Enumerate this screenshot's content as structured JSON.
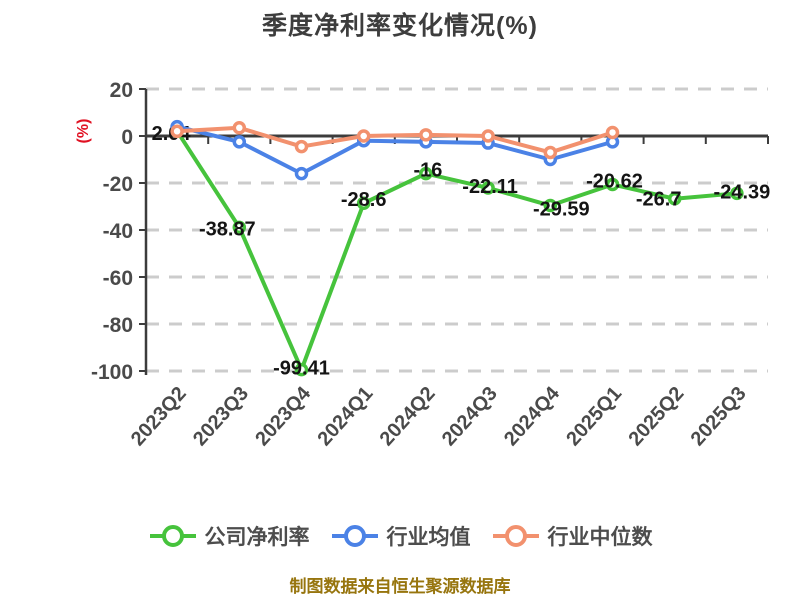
{
  "footer": "制图数据来自恒生聚源数据库",
  "chart_data": {
    "type": "line",
    "title": "季度净利率变化情况(%)",
    "y_axis_name": "(%)",
    "categories": [
      "2023Q2",
      "2023Q3",
      "2023Q4",
      "2024Q1",
      "2024Q2",
      "2024Q3",
      "2024Q4",
      "2025Q1",
      "2025Q2",
      "2025Q3"
    ],
    "y_ticks": [
      20,
      0,
      -20,
      -40,
      -60,
      -80,
      -100
    ],
    "ylim": [
      -100,
      20
    ],
    "grid": "horizontal-dashed",
    "legend_position": "bottom",
    "series": [
      {
        "key": "company-net-margin",
        "name": "公司净利率",
        "color": "#46c33c",
        "values": [
          2.04,
          -38.87,
          -99.41,
          -28.6,
          -16,
          -22.11,
          -29.59,
          -20.62,
          -26.7,
          -24.39
        ],
        "point_labels": [
          "2.04",
          "-38.87",
          "-99.41",
          "-28.6",
          "-16",
          "-22.11",
          "-29.59",
          "-20.62",
          "-26.7",
          "-24.39"
        ]
      },
      {
        "key": "industry-mean",
        "name": "行业均值",
        "color": "#4b82e6",
        "values": [
          4,
          -2.5,
          -16,
          -2,
          -2.5,
          -3,
          -10,
          -2.5,
          null,
          null
        ],
        "point_labels": null
      },
      {
        "key": "industry-median",
        "name": "行业中位数",
        "color": "#f2916e",
        "values": [
          2,
          3.5,
          -4.5,
          0,
          0.5,
          0,
          -7,
          1.5,
          null,
          null
        ],
        "point_labels": null
      }
    ],
    "colors": {
      "title": "#3d3d3d",
      "axis_line": "#3c3c3c",
      "tick_label": "#4a4a4a",
      "grid_line": "#cccccc",
      "point_label": "#141414",
      "y_axis_name": "#e01122",
      "footer": "#97750e",
      "marker_fill": "#ffffff",
      "legend_label": "#4d4d4d"
    }
  }
}
